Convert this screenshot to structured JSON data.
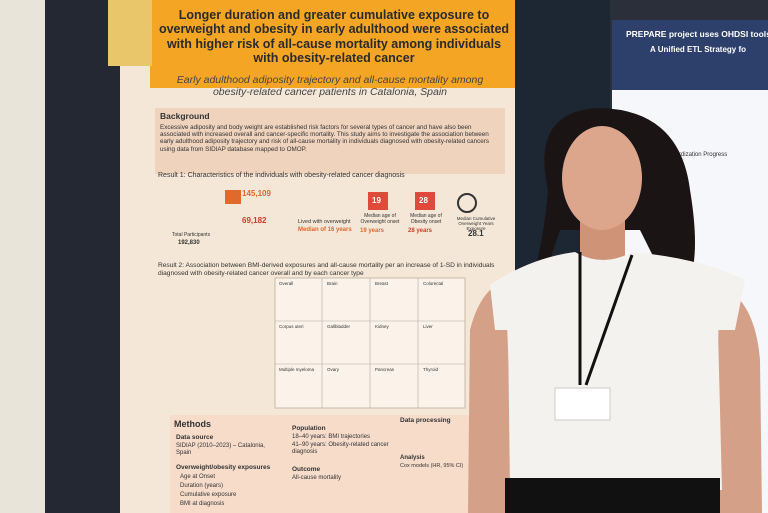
{
  "poster": {
    "title": "Longer duration and greater cumulative exposure to overweight and obesity in early adulthood were associated with higher risk of all-cause mortality among individuals with obesity-related cancer",
    "subtitle": "Early adulthood adiposity trajectory and all-cause mortality among obesity-related cancer patients in Catalonia, Spain",
    "background": {
      "heading": "Background",
      "text": "Excessive adiposity and body weight are established risk factors for several types of cancer and have also been associated with increased overall and cancer-specific mortality. This study aims to investigate the association between early adulthood adiposity trajectory and risk of all-cause mortality in individuals diagnosed with obesity-related cancers using data from SIDIAP database mapped to OMOP."
    },
    "result1": {
      "heading": "Result 1: Characteristics of the individuals with obesity-related cancer diagnosis",
      "overweight_count": "145,109",
      "obesity_count": "69,182",
      "total_count": "192,830",
      "total_label": "Total Participants",
      "lived_label": "Lived with overweight",
      "lived_median": "Median of 16 years",
      "ow_day": "19",
      "ow_label": "Median age of Overweight onset",
      "ow_value": "19 years",
      "ob_day": "28",
      "ob_label": "Median age of Obesity onset",
      "ob_value": "28 years",
      "cum_label": "Median Cumulative Overweight Years Exposure",
      "cum_value": "28.1"
    },
    "result2": {
      "heading": "Result 2: Association between BMI-derived exposures and all-cause mortality per an increase of 1-SD in individuals diagnosed with obesity-related cancer overall and by each cancer type",
      "panels": [
        "Overall",
        "Brain",
        "Breast",
        "Colorectal",
        "Corpus uteri",
        "Gallbladder",
        "Kidney",
        "Liver",
        "Multiple myeloma",
        "Ovary",
        "Pancreas",
        "Thyroid"
      ]
    },
    "methods": {
      "heading": "Methods",
      "data_source": "Data source",
      "data_source_text": "SIDIAP (2010–2023) – Catalonia, Spain",
      "population": "Population",
      "population_items": [
        "18–40 years: BMI trajectories",
        "41–90 years: Obesity-related cancer diagnosis"
      ],
      "outcome": "Outcome",
      "outcome_text": "All-cause mortality",
      "exposures": "Overweight/obesity exposures",
      "exposure_items": [
        "Age at Onset",
        "Duration (years)",
        "Cumulative exposure",
        "BMI at diagnosis"
      ],
      "processing": "Data processing",
      "analysis": "Analysis",
      "analysis_text": "Cox models (HR, 95% CI)"
    }
  },
  "right_poster": {
    "title": "PREPARE project uses OHDSI tools fo",
    "subtitle": "A Unified ETL Strategy fo",
    "section": "OMOP Standardization Progress"
  }
}
